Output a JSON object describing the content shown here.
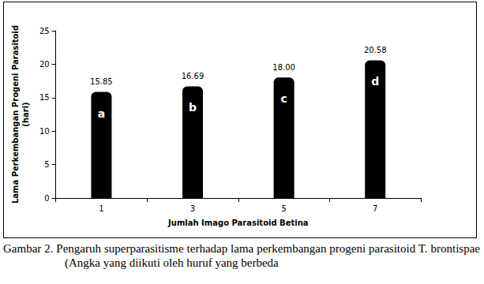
{
  "chart_data": {
    "type": "bar",
    "x_label": "Jumlah Imago Parasitoid Betina",
    "y_label": "Lama Perkembangan Progeni Parasitoid\n(hari)",
    "caption": "Gambar 2. Pengaruh superparasitisme terhadap lama perkembangan progeni parasitoid T. brontispae (Angka yang diikuti oleh huruf yang berbeda",
    "categories": [
      "1",
      "3",
      "5",
      "7"
    ],
    "values": [
      15.85,
      16.69,
      18.0,
      20.58
    ],
    "value_labels": [
      "15.85",
      "16.69",
      "18.00",
      "20.58"
    ],
    "annotations": [
      "a",
      "b",
      "c",
      "d"
    ],
    "color": "#000000",
    "ylim": [
      0,
      25
    ],
    "yticks": [
      0,
      5,
      10,
      15,
      20,
      25
    ],
    "grid": false,
    "data_labels": true
  }
}
